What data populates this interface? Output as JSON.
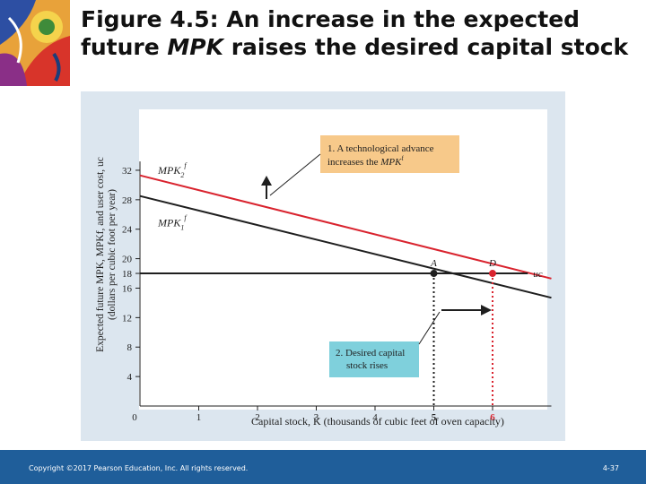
{
  "slide": {
    "title_prefix": "Figure 4.5: An increase in the expected future ",
    "title_italic": "MPK",
    "title_suffix": " raises the desired capital stock"
  },
  "footer": {
    "copyright": "Copyright ©2017 Pearson Education, Inc. All rights reserved.",
    "page": "4-37"
  },
  "colors": {
    "mpk2": "#d9232e",
    "mpk1": "#1f1f1f",
    "callout_top": "#f7c98a",
    "callout_bottom": "#7fd0dc",
    "panel": "#dce6ef",
    "footer": "#1f5e9a"
  },
  "chart_data": {
    "type": "line",
    "xlabel": "Capital stock, K (thousands of cubic feet of oven capacity)",
    "ylabel_line1": "Expected future MPK, MPKf, and user cost, uc",
    "ylabel_line2": "(dollars per cubic foot per year)",
    "xlim": [
      0,
      7
    ],
    "ylim": [
      0,
      34
    ],
    "x_ticks": [
      0,
      1,
      2,
      3,
      4,
      5,
      6
    ],
    "y_ticks": [
      4,
      8,
      12,
      16,
      18,
      20,
      24,
      28,
      32
    ],
    "series": [
      {
        "name": "MPK2f",
        "label": "MPK",
        "sub": "2",
        "sup": "f",
        "color": "#d9232e",
        "x": [
          0,
          7
        ],
        "y": [
          31.3,
          17.3
        ]
      },
      {
        "name": "MPK1f",
        "label": "MPK",
        "sub": "1",
        "sup": "f",
        "color": "#1f1f1f",
        "x": [
          0,
          7
        ],
        "y": [
          28.5,
          14.7
        ]
      },
      {
        "name": "uc",
        "label": "uc",
        "color": "#1f1f1f",
        "x": [
          0,
          6.6
        ],
        "y": [
          18,
          18
        ]
      }
    ],
    "points": [
      {
        "label": "A",
        "x": 5,
        "y": 18,
        "color": "#1f1f1f"
      },
      {
        "label": "D",
        "x": 6,
        "y": 18,
        "color": "#d9232e"
      }
    ],
    "annotations": {
      "callout_top": {
        "line1": "1. A technological advance",
        "line2_prefix": "increases the ",
        "line2_italic": "MPK",
        "line2_sup": "f"
      },
      "callout_bottom": {
        "line1": "2. Desired capital",
        "line2": "stock rises"
      }
    }
  }
}
